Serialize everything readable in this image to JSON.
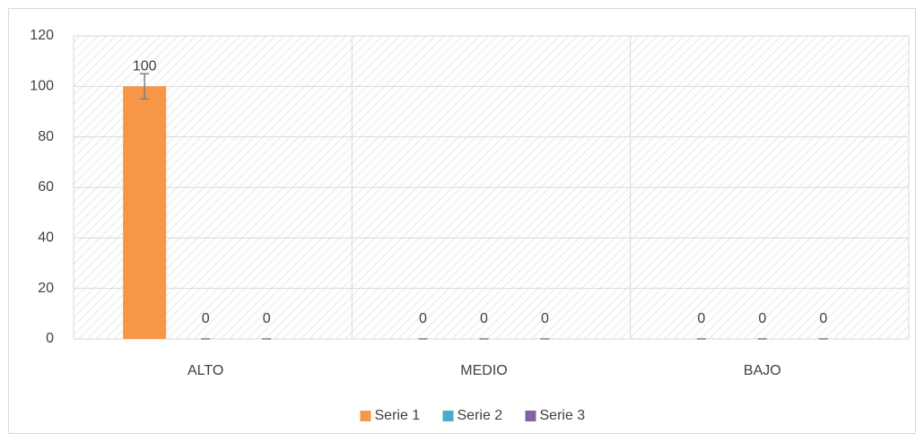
{
  "chart_data": {
    "type": "bar",
    "categories": [
      "ALTO",
      "MEDIO",
      "BAJO"
    ],
    "series": [
      {
        "name": "Serie 1",
        "color": "#f79646",
        "values": [
          100,
          0,
          0
        ],
        "errors": [
          5,
          0,
          0
        ]
      },
      {
        "name": "Serie 2",
        "color": "#4bacc6",
        "values": [
          0,
          0,
          0
        ],
        "errors": [
          0,
          0,
          0
        ]
      },
      {
        "name": "Serie 3",
        "color": "#8064a2",
        "values": [
          0,
          0,
          0
        ],
        "errors": [
          0,
          0,
          0
        ]
      }
    ],
    "ylim": [
      0,
      120
    ],
    "yticks": [
      0,
      20,
      40,
      60,
      80,
      100,
      120
    ],
    "grid": true,
    "legend": "bottom"
  }
}
